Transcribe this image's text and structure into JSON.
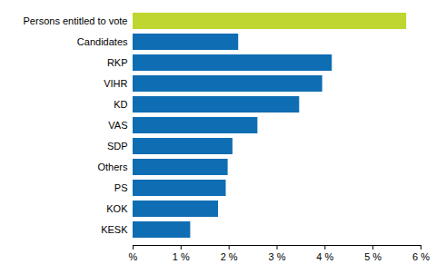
{
  "chart_data": {
    "type": "bar",
    "orientation": "horizontal",
    "categories": [
      "Persons entitled to vote",
      "Candidates",
      "RKP",
      "VIHR",
      "KD",
      "VAS",
      "SDP",
      "Others",
      "PS",
      "KOK",
      "KESK"
    ],
    "values": [
      5.7,
      2.2,
      4.15,
      3.95,
      3.47,
      2.6,
      2.08,
      1.98,
      1.94,
      1.78,
      1.2
    ],
    "colors": [
      "#bfd630",
      "#0f6db3",
      "#0f6db3",
      "#0f6db3",
      "#0f6db3",
      "#0f6db3",
      "#0f6db3",
      "#0f6db3",
      "#0f6db3",
      "#0f6db3",
      "#0f6db3"
    ],
    "xlim": [
      0,
      6
    ],
    "xticks": [
      {
        "value": 0,
        "label": "%"
      },
      {
        "value": 1,
        "label": "1 %"
      },
      {
        "value": 2,
        "label": "2 %"
      },
      {
        "value": 3,
        "label": "3 %"
      },
      {
        "value": 4,
        "label": "4 %"
      },
      {
        "value": 5,
        "label": "5 %"
      },
      {
        "value": 6,
        "label": "6 %"
      }
    ],
    "grid": false
  }
}
